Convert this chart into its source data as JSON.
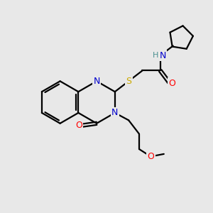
{
  "background_color": "#e8e8e8",
  "atom_colors": {
    "C": "#000000",
    "N": "#0000cc",
    "O": "#ff0000",
    "S": "#ccaa00",
    "H": "#4a9090"
  },
  "bond_color": "#000000",
  "bond_width": 1.6,
  "figsize": [
    3.0,
    3.0
  ],
  "dpi": 100
}
